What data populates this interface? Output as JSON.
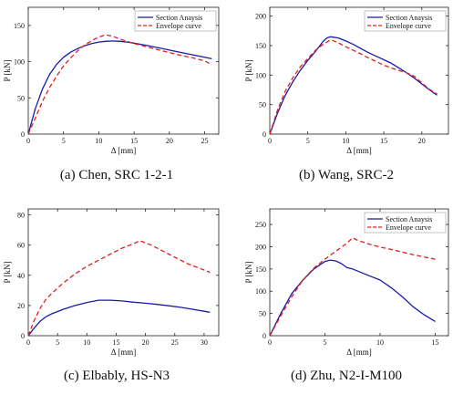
{
  "chart_data": [
    {
      "type": "line",
      "caption": "(a) Chen, SRC 1-2-1",
      "xlabel": "Δ [mm]",
      "ylabel": "P [kN]",
      "xlim": [
        0,
        27
      ],
      "ylim": [
        0,
        175
      ],
      "xticks": [
        0,
        5,
        10,
        15,
        20,
        25
      ],
      "yticks": [
        0,
        50,
        100,
        150
      ],
      "legend": "top-right",
      "series": [
        {
          "name": "Section Anaysis",
          "color": "#1a1aa6",
          "dash": "solid",
          "x": [
            0,
            1,
            2,
            3,
            4,
            5,
            6,
            7,
            8,
            9,
            10,
            11,
            12,
            13,
            14,
            15,
            17,
            19,
            21,
            23,
            25,
            26
          ],
          "y": [
            0,
            35,
            62,
            82,
            96,
            106,
            113,
            118,
            122,
            125,
            127,
            128,
            128.5,
            128,
            127,
            125.5,
            122,
            118,
            114,
            110,
            106,
            104
          ]
        },
        {
          "name": "Envelope curve",
          "color": "#e02020",
          "dash": "dashed",
          "x": [
            0,
            1,
            2,
            3,
            4,
            5,
            6,
            7,
            8,
            9,
            10,
            11,
            12,
            13,
            14,
            15,
            17,
            19,
            21,
            23,
            25,
            26
          ],
          "y": [
            0,
            22,
            45,
            64,
            80,
            94,
            105,
            115,
            123,
            129,
            134,
            137,
            135,
            131,
            128,
            125,
            120,
            115,
            110,
            106,
            101,
            96
          ]
        }
      ]
    },
    {
      "type": "line",
      "caption": "(b) Wang, SRC-2",
      "xlabel": "Δ [mm]",
      "ylabel": "P [kN]",
      "xlim": [
        0,
        23.5
      ],
      "ylim": [
        0,
        215
      ],
      "xticks": [
        0,
        5,
        10,
        15,
        20
      ],
      "yticks": [
        0,
        50,
        100,
        150,
        200
      ],
      "legend": "top-right",
      "series": [
        {
          "name": "Section Anaysis",
          "color": "#1a1aa6",
          "dash": "solid",
          "x": [
            0,
            1,
            2,
            3,
            4,
            5,
            6,
            7,
            7.5,
            8,
            9,
            10,
            11,
            12,
            13,
            14,
            15,
            16,
            17,
            18,
            19,
            20,
            21,
            22
          ],
          "y": [
            0,
            35,
            65,
            88,
            108,
            125,
            140,
            157,
            163,
            165,
            163,
            158,
            152,
            145,
            138,
            132,
            126,
            120,
            112,
            104,
            95,
            85,
            75,
            66
          ]
        },
        {
          "name": "Envelope curve",
          "color": "#e02020",
          "dash": "dashed",
          "x": [
            0,
            1,
            2,
            3,
            4,
            5,
            6,
            7,
            8,
            9,
            10,
            11,
            12,
            13,
            14,
            15,
            16,
            17,
            18,
            19,
            20,
            21,
            22
          ],
          "y": [
            0,
            40,
            72,
            95,
            114,
            128,
            142,
            152,
            160,
            155,
            148,
            142,
            136,
            129,
            123,
            117,
            112,
            108,
            104,
            98,
            87,
            76,
            68
          ]
        }
      ]
    },
    {
      "type": "line",
      "caption": "(c) Elbably, HS-N3",
      "xlabel": "Δ [mm]",
      "ylabel": "P [kN]",
      "xlim": [
        0,
        32.5
      ],
      "ylim": [
        0,
        84
      ],
      "xticks": [
        0,
        5,
        10,
        15,
        20,
        25,
        30
      ],
      "yticks": [
        0,
        20,
        40,
        60,
        80
      ],
      "legend": "none",
      "series": [
        {
          "name": "Section Anaysis",
          "color": "#1a1aa6",
          "dash": "solid",
          "x": [
            0,
            1,
            2,
            3,
            4,
            6,
            8,
            10,
            12,
            14,
            16,
            18,
            20,
            22,
            24,
            26,
            28,
            30,
            31
          ],
          "y": [
            0,
            5,
            9.5,
            12.5,
            14.5,
            17.5,
            20,
            22,
            23.5,
            23.5,
            23,
            22.2,
            21.5,
            20.7,
            19.8,
            18.8,
            17.5,
            16.2,
            15.5
          ]
        },
        {
          "name": "Envelope curve",
          "color": "#e02020",
          "dash": "dashed",
          "x": [
            0,
            1,
            2,
            3,
            4,
            6,
            8,
            10,
            12,
            14,
            16,
            18,
            19,
            21,
            23,
            25,
            27,
            29,
            31
          ],
          "y": [
            0,
            10,
            18,
            24,
            28,
            35,
            41,
            46,
            50,
            54,
            58,
            61,
            63,
            60,
            56,
            52,
            48,
            45,
            42
          ]
        }
      ]
    },
    {
      "type": "line",
      "caption": "(d) Zhu, N2-I-M100",
      "xlabel": "Δ [mm]",
      "ylabel": "P [kN]",
      "xlim": [
        0,
        16.2
      ],
      "ylim": [
        0,
        285
      ],
      "xticks": [
        0,
        5,
        10,
        15
      ],
      "yticks": [
        0,
        50,
        100,
        150,
        200,
        250
      ],
      "legend": "top-right",
      "series": [
        {
          "name": "Section Anaysis",
          "color": "#1a1aa6",
          "dash": "solid",
          "x": [
            0,
            1,
            2,
            3,
            4,
            5,
            5.5,
            6,
            6.5,
            7,
            7.5,
            8,
            9,
            10,
            11,
            12,
            13,
            14,
            15
          ],
          "y": [
            0,
            50,
            95,
            125,
            150,
            167,
            170,
            168,
            162,
            153,
            150,
            145,
            135,
            125,
            108,
            88,
            65,
            47,
            32
          ]
        },
        {
          "name": "Envelope curve",
          "color": "#e02020",
          "dash": "dashed",
          "x": [
            0,
            1,
            2,
            3,
            4,
            5,
            6,
            7,
            7.5,
            8,
            9,
            10,
            11,
            12,
            13,
            14,
            15
          ],
          "y": [
            0,
            45,
            88,
            125,
            152,
            172,
            190,
            208,
            220,
            214,
            206,
            199,
            194,
            188,
            182,
            177,
            172
          ]
        }
      ]
    }
  ]
}
